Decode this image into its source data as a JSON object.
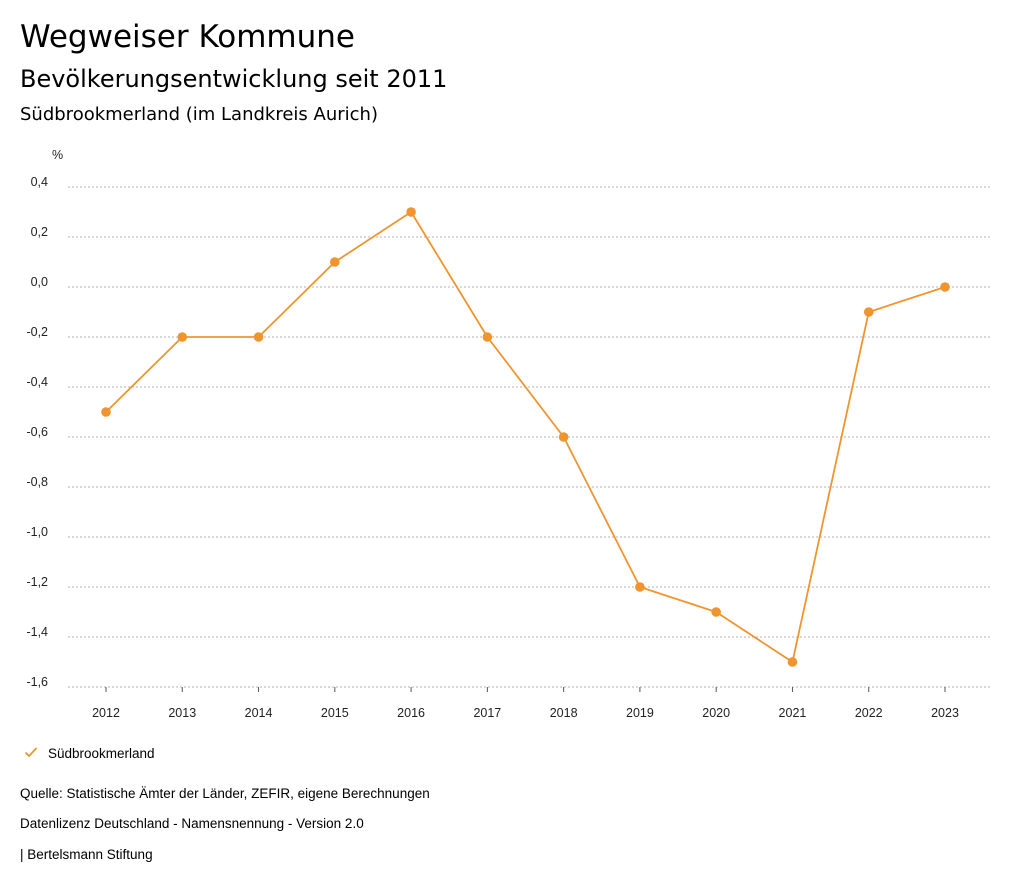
{
  "header": {
    "title": "Wegweiser Kommune",
    "subtitle": "Bevölkerungsentwicklung seit 2011",
    "region": "Südbrookmerland (im Landkreis Aurich)"
  },
  "chart_data": {
    "type": "line",
    "title": "Bevölkerungsentwicklung seit 2011",
    "subtitle": "Südbrookmerland (im Landkreis Aurich)",
    "ylabel": "%",
    "xlabel": "",
    "categories": [
      "2012",
      "2013",
      "2014",
      "2015",
      "2016",
      "2017",
      "2018",
      "2019",
      "2020",
      "2021",
      "2022",
      "2023"
    ],
    "series": [
      {
        "name": "Südbrookmerland",
        "color": "#f0952e",
        "values": [
          -0.5,
          -0.2,
          -0.2,
          0.1,
          0.3,
          -0.2,
          -0.6,
          -1.2,
          -1.3,
          -1.5,
          -0.1,
          0.0
        ]
      }
    ],
    "ylim": [
      -1.6,
      0.4
    ],
    "yticks": [
      "0,4",
      "0,2",
      "0,0",
      "-0,2",
      "-0,4",
      "-0,6",
      "-0,8",
      "-1,0",
      "-1,2",
      "-1,4",
      "-1,6"
    ],
    "ytick_values": [
      0.4,
      0.2,
      0.0,
      -0.2,
      -0.4,
      -0.6,
      -0.8,
      -1.0,
      -1.2,
      -1.4,
      -1.6
    ],
    "grid": true,
    "legend_position": "bottom-left"
  },
  "legend": {
    "icon": "check-icon",
    "label": "Südbrookmerland"
  },
  "footer": {
    "source": "Quelle: Statistische Ämter der Länder, ZEFIR, eigene Berechnungen",
    "license": "Datenlizenz Deutschland - Namensnennung - Version 2.0",
    "credit": "| Bertelsmann Stiftung"
  }
}
